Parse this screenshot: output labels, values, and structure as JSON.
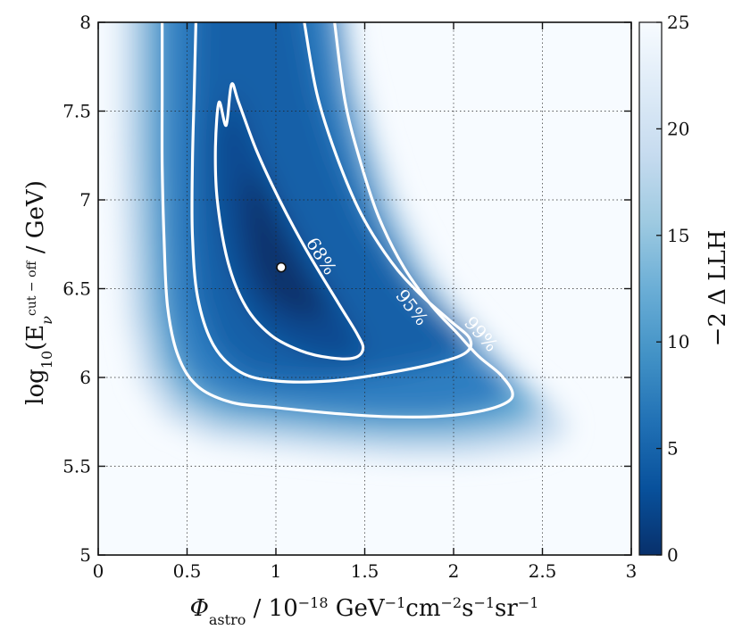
{
  "chart_data": {
    "type": "heatmap",
    "title": "",
    "xlabel": {
      "symbol": "Φ",
      "sub": "astro",
      "text": " / 10",
      "exp": "−18",
      "unit": " GeV",
      "unit_exp": "−1",
      "unit2": "cm",
      "unit2_exp": "−2",
      "unit3": "s",
      "unit3_exp": "−1",
      "unit4": "sr",
      "unit4_exp": "−1"
    },
    "ylabel": {
      "text": "log",
      "sub": "10",
      "open": "(E",
      "var_sub": "ν",
      "var_sup": "cut − off",
      "close": " / GeV)"
    },
    "xlim": [
      0,
      3
    ],
    "ylim": [
      5,
      8
    ],
    "x_ticks": [
      0,
      0.5,
      1,
      1.5,
      2,
      2.5,
      3
    ],
    "x_tick_labels": [
      "0",
      "0.5",
      "1",
      "1.5",
      "2",
      "2.5",
      "3"
    ],
    "y_ticks": [
      5,
      5.5,
      6,
      6.5,
      7,
      7.5,
      8
    ],
    "y_tick_labels": [
      "5",
      "5.5",
      "6",
      "6.5",
      "7",
      "7.5",
      "8"
    ],
    "grid": true,
    "colorbar": {
      "label": "−2 Δ LLH",
      "range": [
        0,
        25
      ],
      "ticks": [
        0,
        5,
        10,
        15,
        20,
        25
      ],
      "tick_labels": [
        "0",
        "5",
        "10",
        "15",
        "20",
        "25"
      ],
      "colormap": [
        "#08306b",
        "#08519c",
        "#2171b5",
        "#4292c6",
        "#6baed6",
        "#9ecae1",
        "#c6dbef",
        "#deebf7",
        "#f7fbff"
      ]
    },
    "best_fit": {
      "x": 1.03,
      "y": 6.62
    },
    "contours": [
      {
        "level": "68%",
        "points": [
          [
            0.72,
            7.42
          ],
          [
            0.75,
            7.65
          ],
          [
            0.79,
            7.55
          ],
          [
            0.89,
            7.28
          ],
          [
            1.02,
            7.0
          ],
          [
            1.17,
            6.72
          ],
          [
            1.35,
            6.42
          ],
          [
            1.46,
            6.24
          ],
          [
            1.49,
            6.16
          ],
          [
            1.44,
            6.11
          ],
          [
            1.31,
            6.11
          ],
          [
            1.14,
            6.15
          ],
          [
            0.97,
            6.24
          ],
          [
            0.83,
            6.4
          ],
          [
            0.73,
            6.65
          ],
          [
            0.67,
            7.0
          ],
          [
            0.66,
            7.3
          ],
          [
            0.68,
            7.55
          ]
        ],
        "label_pos": [
          1.25,
          6.68
        ],
        "label_angle": 58
      },
      {
        "level": "95%",
        "points": [
          [
            0.55,
            8.0
          ],
          [
            0.54,
            7.6
          ],
          [
            0.53,
            7.2
          ],
          [
            0.53,
            6.8
          ],
          [
            0.56,
            6.45
          ],
          [
            0.65,
            6.18
          ],
          [
            0.8,
            6.03
          ],
          [
            1.0,
            5.98
          ],
          [
            1.3,
            5.98
          ],
          [
            1.6,
            6.02
          ],
          [
            1.9,
            6.08
          ],
          [
            2.07,
            6.14
          ],
          [
            2.09,
            6.22
          ],
          [
            1.98,
            6.32
          ],
          [
            1.8,
            6.48
          ],
          [
            1.65,
            6.65
          ],
          [
            1.48,
            6.92
          ],
          [
            1.34,
            7.25
          ],
          [
            1.23,
            7.6
          ],
          [
            1.16,
            8.0
          ]
        ],
        "label_pos": [
          1.76,
          6.39
        ],
        "label_angle": 52
      },
      {
        "level": "99%",
        "points": [
          [
            0.36,
            8.0
          ],
          [
            0.36,
            7.6
          ],
          [
            0.36,
            7.2
          ],
          [
            0.37,
            6.8
          ],
          [
            0.39,
            6.4
          ],
          [
            0.45,
            6.12
          ],
          [
            0.56,
            5.95
          ],
          [
            0.75,
            5.86
          ],
          [
            1.0,
            5.83
          ],
          [
            1.3,
            5.8
          ],
          [
            1.6,
            5.78
          ],
          [
            1.9,
            5.78
          ],
          [
            2.15,
            5.81
          ],
          [
            2.3,
            5.86
          ],
          [
            2.33,
            5.92
          ],
          [
            2.26,
            6.02
          ],
          [
            2.14,
            6.12
          ],
          [
            2.02,
            6.25
          ],
          [
            1.88,
            6.4
          ],
          [
            1.72,
            6.62
          ],
          [
            1.58,
            6.9
          ],
          [
            1.48,
            7.2
          ],
          [
            1.39,
            7.55
          ],
          [
            1.33,
            8.0
          ]
        ],
        "label_pos": [
          2.15,
          6.24
        ],
        "label_angle": 48
      }
    ]
  }
}
